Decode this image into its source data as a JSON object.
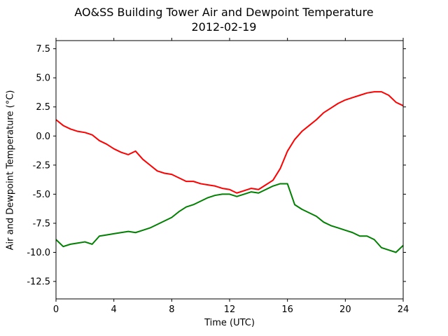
{
  "chart_data": {
    "type": "line",
    "title": "AO&SS Building Tower Air and Dewpoint Temperature",
    "subtitle": "2012-02-19",
    "xlabel": "Time (UTC)",
    "ylabel": "Air and Dewpoint Temperature (°C)",
    "xlim": [
      0,
      24
    ],
    "ylim": [
      -14.0,
      8.2
    ],
    "xticks": [
      0,
      4,
      8,
      12,
      16,
      20,
      24
    ],
    "yticks": [
      -12.5,
      -10.0,
      -7.5,
      -5.0,
      -2.5,
      0.0,
      2.5,
      5.0,
      7.5
    ],
    "grid": false,
    "series": [
      {
        "color": "#ff0000",
        "x": [
          0,
          0.5,
          1,
          1.5,
          2,
          2.5,
          3,
          3.5,
          4,
          4.5,
          5,
          5.5,
          6,
          6.5,
          7,
          7.5,
          8,
          8.5,
          9,
          9.5,
          10,
          10.5,
          11,
          11.5,
          12,
          12.5,
          13,
          13.5,
          14,
          14.5,
          15,
          15.5,
          16,
          16.5,
          17,
          17.5,
          18,
          18.5,
          19,
          19.5,
          20,
          20.5,
          21,
          21.5,
          22,
          22.5,
          23,
          23.5,
          24
        ],
        "values": [
          1.4,
          0.9,
          0.6,
          0.4,
          0.3,
          0.1,
          -0.4,
          -0.7,
          -1.1,
          -1.4,
          -1.6,
          -1.3,
          -2.0,
          -2.5,
          -3.0,
          -3.2,
          -3.3,
          -3.6,
          -3.9,
          -3.9,
          -4.1,
          -4.2,
          -4.3,
          -4.5,
          -4.6,
          -4.9,
          -4.7,
          -4.5,
          -4.6,
          -4.2,
          -3.8,
          -2.8,
          -1.3,
          -0.3,
          0.4,
          0.9,
          1.4,
          2.0,
          2.4,
          2.8,
          3.1,
          3.3,
          3.5,
          3.7,
          3.8,
          3.8,
          3.5,
          2.9,
          2.6
        ]
      },
      {
        "color": "#008000",
        "x": [
          0,
          0.5,
          1,
          1.5,
          2,
          2.5,
          3,
          3.5,
          4,
          4.5,
          5,
          5.5,
          6,
          6.5,
          7,
          7.5,
          8,
          8.5,
          9,
          9.5,
          10,
          10.5,
          11,
          11.5,
          12,
          12.5,
          13,
          13.5,
          14,
          14.5,
          15,
          15.5,
          16,
          16.5,
          17,
          17.5,
          18,
          18.5,
          19,
          19.5,
          20,
          20.5,
          21,
          21.5,
          22,
          22.5,
          23,
          23.5,
          24
        ],
        "values": [
          -8.9,
          -9.5,
          -9.3,
          -9.2,
          -9.1,
          -9.3,
          -8.6,
          -8.5,
          -8.4,
          -8.3,
          -8.2,
          -8.3,
          -8.1,
          -7.9,
          -7.6,
          -7.3,
          -7.0,
          -6.5,
          -6.1,
          -5.9,
          -5.6,
          -5.3,
          -5.1,
          -5.0,
          -5.0,
          -5.2,
          -5.0,
          -4.8,
          -4.9,
          -4.6,
          -4.3,
          -4.1,
          -4.1,
          -5.9,
          -6.3,
          -6.6,
          -6.9,
          -7.4,
          -7.7,
          -7.9,
          -8.1,
          -8.3,
          -8.6,
          -8.6,
          -8.9,
          -9.6,
          -9.8,
          -10.0,
          -9.4
        ]
      }
    ]
  }
}
